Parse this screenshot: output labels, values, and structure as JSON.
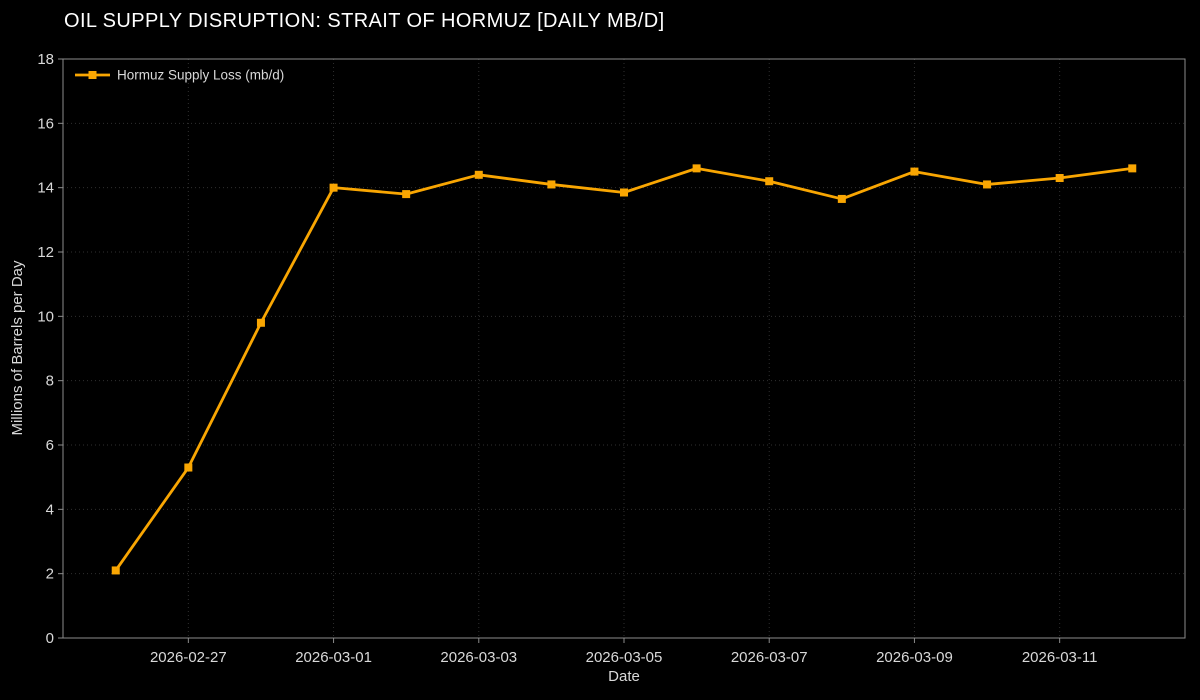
{
  "title": "OIL SUPPLY DISRUPTION: STRAIT OF HORMUZ [DAILY MB/D]",
  "colors": {
    "background": "#000000",
    "line": "#F9A602",
    "grid": "#2f2f2f",
    "spine": "#8c8c8c",
    "tick_label": "#d9d9d9",
    "title": "#ffffff"
  },
  "legend": {
    "label": "Hormuz Supply Loss (mb/d)",
    "position": "upper left",
    "frame": false
  },
  "chart_data": {
    "type": "line",
    "title": "OIL SUPPLY DISRUPTION: STRAIT OF HORMUZ [DAILY MB/D]",
    "xlabel": "Date",
    "ylabel": "Millions of Barrels per Day",
    "x": [
      "2026-02-26",
      "2026-02-27",
      "2026-02-28",
      "2026-03-01",
      "2026-03-02",
      "2026-03-03",
      "2026-03-04",
      "2026-03-05",
      "2026-03-06",
      "2026-03-07",
      "2026-03-08",
      "2026-03-09",
      "2026-03-10",
      "2026-03-11",
      "2026-03-12"
    ],
    "series": [
      {
        "name": "Hormuz Supply Loss (mb/d)",
        "values": [
          2.1,
          5.3,
          9.8,
          14.0,
          13.8,
          14.4,
          14.1,
          13.85,
          14.6,
          14.2,
          13.65,
          14.5,
          14.1,
          14.3,
          14.6
        ],
        "marker": "square",
        "color": "#F9A602"
      }
    ],
    "ylim": [
      0,
      18
    ],
    "yticks": [
      0,
      2,
      4,
      6,
      8,
      10,
      12,
      14,
      16,
      18
    ],
    "xtick_labels": [
      "2026-02-27",
      "2026-03-01",
      "2026-03-03",
      "2026-03-05",
      "2026-03-07",
      "2026-03-09",
      "2026-03-11"
    ],
    "grid": true,
    "grid_style": "dotted",
    "legend_position": "upper left"
  }
}
